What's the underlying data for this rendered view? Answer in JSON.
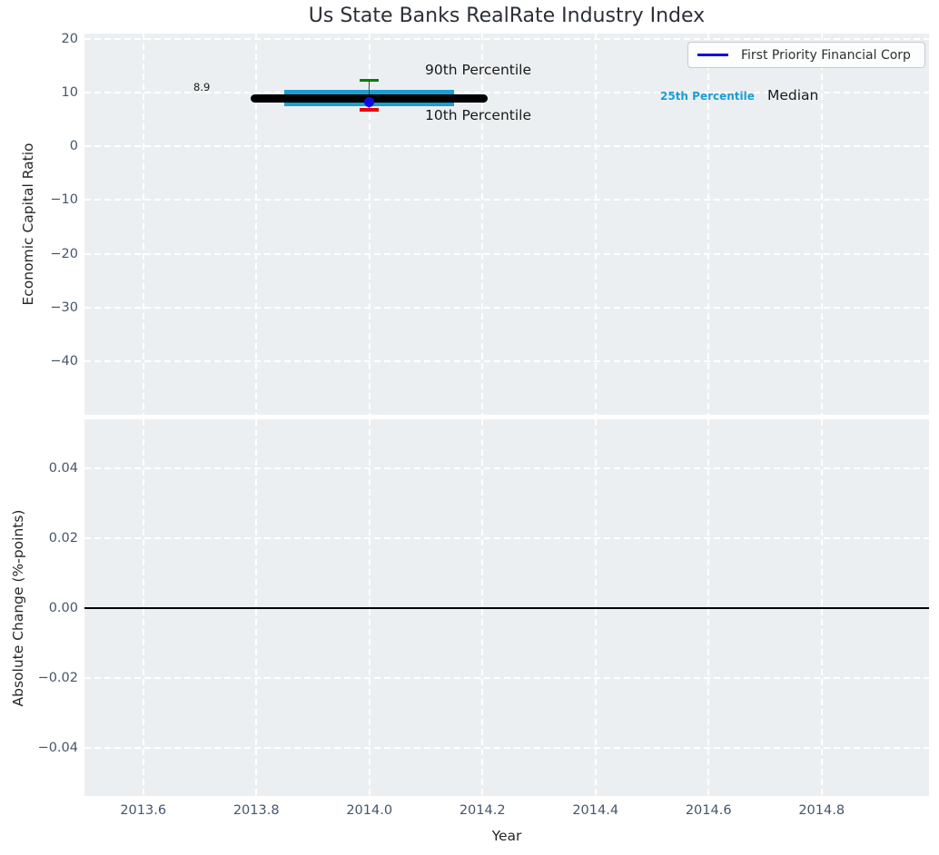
{
  "title": "Us State Banks RealRate Industry Index",
  "legend": {
    "label": "First Priority Financial Corp",
    "line_color": "#0d0de0"
  },
  "annotations": {
    "p90_label": "90th Percentile",
    "p10_label": "10th Percentile",
    "p25_label": "25th Percentile",
    "median_label": "Median",
    "value_label": "8.9"
  },
  "axis_labels": {
    "top_y": "Economic Capital Ratio",
    "bottom_y": "Absolute Change (%-points)",
    "x": "Year"
  },
  "colors": {
    "axes_background": "#eceff1",
    "grid": "#ffffff",
    "tick_label": "#44566b",
    "company_blue": "#0d0de0",
    "percentile_band_cyan": "#1a9ed3",
    "p90_green": "#008000",
    "p10_red": "#e80000",
    "median_line": "#000000"
  },
  "chart_data": [
    {
      "type": "scatter",
      "title": "Us State Banks RealRate Industry Index",
      "ylabel": "Economic Capital Ratio",
      "xlim": [
        2013.496,
        2014.99
      ],
      "ylim": [
        -50,
        21
      ],
      "xticks": [
        2013.6,
        2013.8,
        2014.0,
        2014.2,
        2014.4,
        2014.6,
        2014.8
      ],
      "xtick_labels": [
        "2013.6",
        "2013.8",
        "2014.0",
        "2014.2",
        "2014.4",
        "2014.6",
        "2014.8"
      ],
      "yticks": [
        20,
        10,
        0,
        -10,
        -20,
        -30,
        -40
      ],
      "ytick_labels": [
        "20",
        "10",
        "0",
        "−10",
        "−20",
        "−30",
        "−40"
      ],
      "grid": "white dashed, on",
      "legend_position": "upper right",
      "legend_entries": [
        "First Priority Financial Corp"
      ],
      "industry_index": {
        "year": 2014.0,
        "median": 8.9,
        "p90": 12.3,
        "p75": 10.5,
        "p25": 7.4,
        "p10": 6.8,
        "median_value_label": "8.9",
        "median_line_span_years": [
          2013.79,
          2014.21
        ],
        "band_span_years": [
          2013.85,
          2014.15
        ],
        "cap_halfwidth_years": 0.017
      },
      "series": [
        {
          "name": "First Priority Financial Corp",
          "marker": "circle",
          "color": "#0d0de0",
          "points": [
            {
              "x": 2014.0,
              "y": 8.3
            }
          ]
        }
      ]
    },
    {
      "type": "line",
      "ylabel": "Absolute Change (%-points)",
      "xlabel": "Year",
      "xlim": [
        2013.496,
        2014.99
      ],
      "ylim": [
        -0.0538,
        0.054
      ],
      "xticks": [
        2013.6,
        2013.8,
        2014.0,
        2014.2,
        2014.4,
        2014.6,
        2014.8
      ],
      "xtick_labels": [
        "2013.6",
        "2013.8",
        "2014.0",
        "2014.2",
        "2014.4",
        "2014.6",
        "2014.8"
      ],
      "yticks": [
        0.04,
        0.02,
        0.0,
        -0.02,
        -0.04
      ],
      "ytick_labels": [
        "0.04",
        "0.02",
        "0.00",
        "−0.02",
        "−0.04"
      ],
      "grid": "white dashed, on",
      "zero_line": true,
      "series": []
    }
  ]
}
